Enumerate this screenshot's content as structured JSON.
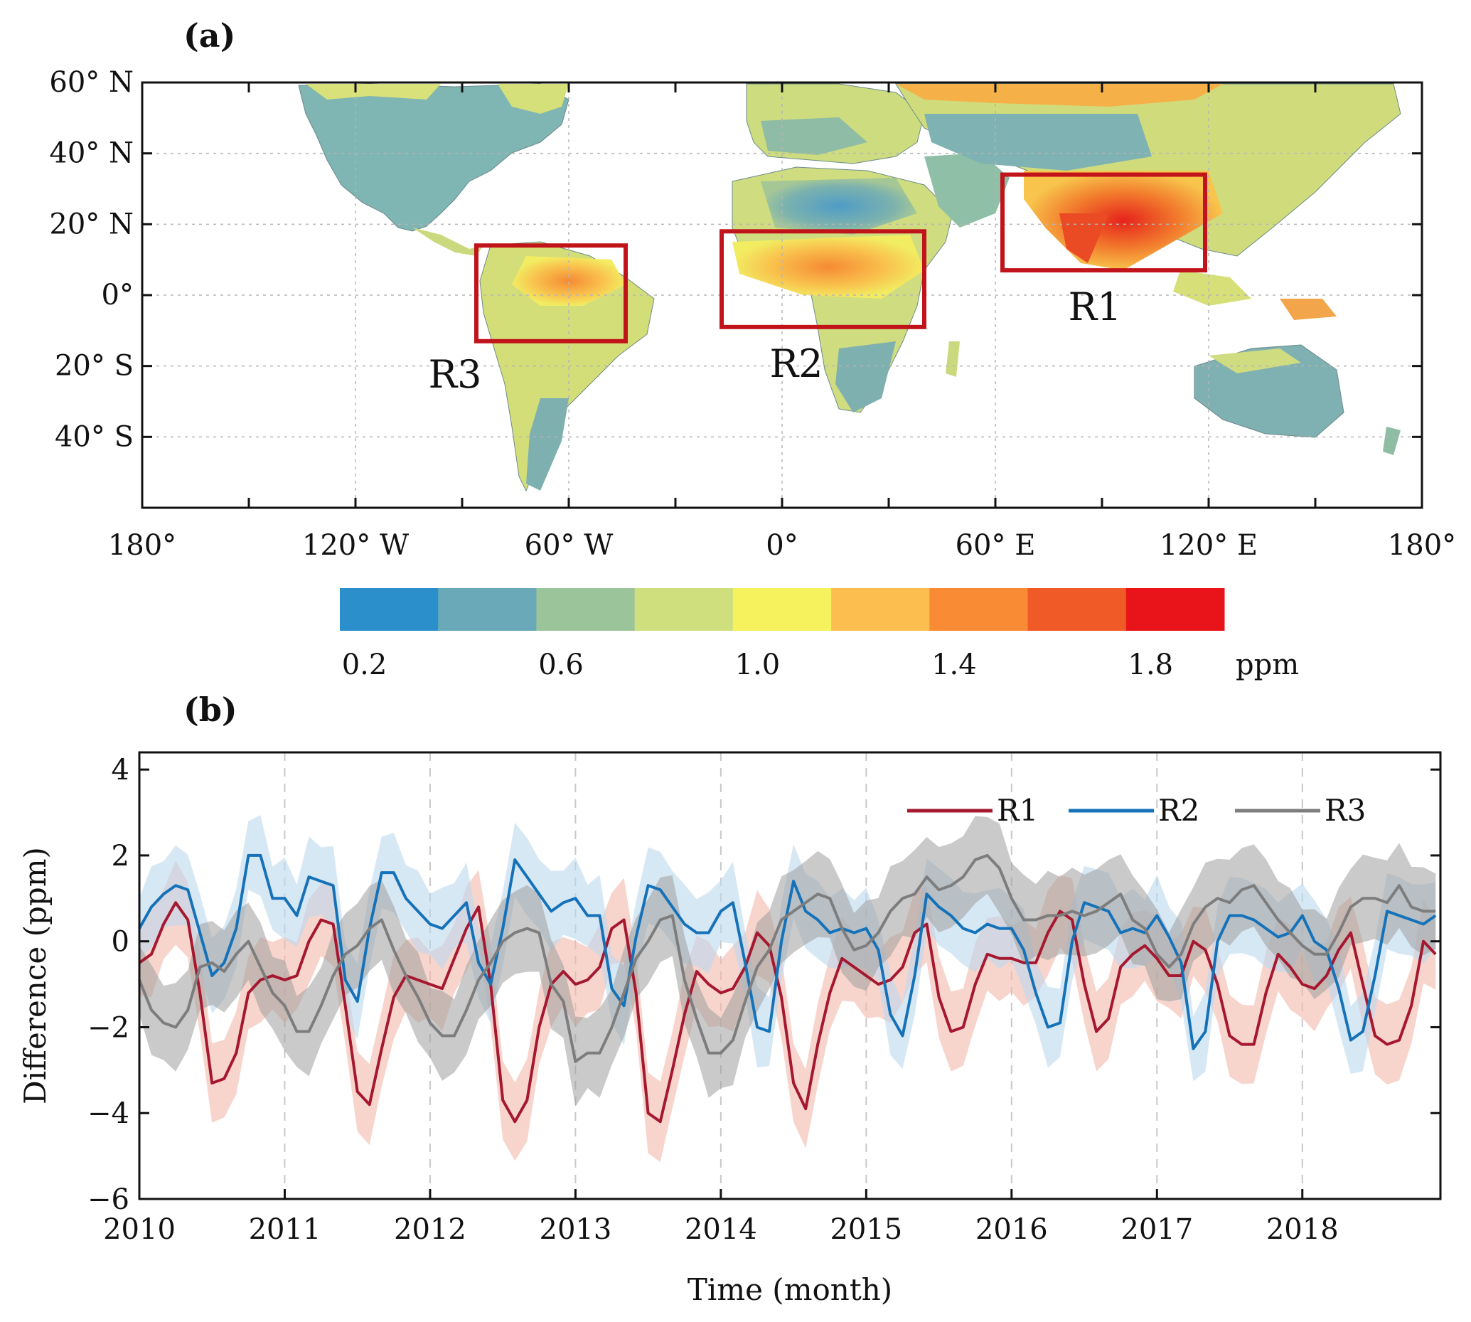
{
  "panels": {
    "a_label": "(a)",
    "b_label": "(b)"
  },
  "map": {
    "lat_ticks": [
      "60° N",
      "40° N",
      "20° N",
      "0°",
      "20° S",
      "40° S"
    ],
    "lat_values": [
      60,
      40,
      20,
      0,
      -20,
      -40
    ],
    "lon_ticks": [
      "180°",
      "120° W",
      "60° W",
      "0°",
      "60° E",
      "120° E",
      "180°"
    ],
    "lon_values": [
      -180,
      -120,
      -60,
      0,
      60,
      120,
      180
    ],
    "lat_range": [
      -60,
      60
    ],
    "lon_range": [
      -180,
      180
    ],
    "regions": [
      {
        "name": "R1",
        "lon": [
          62,
          119
        ],
        "lat": [
          7,
          34
        ],
        "color": "#c0141a"
      },
      {
        "name": "R2",
        "lon": [
          -17,
          40
        ],
        "lat": [
          -9,
          18
        ],
        "color": "#c0141a"
      },
      {
        "name": "R3",
        "lon": [
          -86,
          -44
        ],
        "lat": [
          -13,
          14
        ],
        "color": "#c0141a"
      }
    ]
  },
  "colorbar": {
    "colors": [
      "#2b8fcb",
      "#6aa9b7",
      "#9cc49b",
      "#cfdf7d",
      "#f5f25e",
      "#fcbf4f",
      "#f98b34",
      "#f05a26",
      "#e8141a"
    ],
    "tick_labels": [
      "0.2",
      "0.6",
      "1.0",
      "1.4",
      "1.8"
    ],
    "unit": "ppm"
  },
  "chart_data": {
    "type": "line",
    "xlabel": "Time (month)",
    "ylabel": "Difference (ppm)",
    "xlim": [
      2010,
      2018.95
    ],
    "ylim": [
      -6,
      4.4
    ],
    "x_ticks": [
      "2010",
      "2011",
      "2012",
      "2013",
      "2014",
      "2015",
      "2016",
      "2017",
      "2018"
    ],
    "y_ticks": [
      "4",
      "2",
      "0",
      "−2",
      "−4",
      "−6"
    ],
    "y_tick_values": [
      4,
      2,
      0,
      -2,
      -4,
      -6
    ],
    "grid": "vertical-dashed",
    "legend": "top-right",
    "series": [
      {
        "name": "R1",
        "color": "#a5182f",
        "band_color": "#f2b9ab",
        "values": [
          -0.5,
          -0.3,
          0.4,
          0.9,
          0.5,
          -1.2,
          -3.3,
          -3.2,
          -2.6,
          -1.2,
          -0.9,
          -0.8,
          -0.9,
          -0.8,
          0.0,
          0.5,
          0.4,
          -1.5,
          -3.5,
          -3.8,
          -2.5,
          -1.3,
          -0.8,
          -0.9,
          -1.0,
          -1.1,
          -0.4,
          0.3,
          0.8,
          -1.0,
          -3.7,
          -4.2,
          -3.7,
          -2.0,
          -1.0,
          -0.7,
          -1.0,
          -0.9,
          -0.6,
          0.3,
          0.5,
          -1.2,
          -4.0,
          -4.2,
          -3.0,
          -1.7,
          -0.7,
          -1.0,
          -1.2,
          -1.1,
          -0.6,
          0.2,
          -0.1,
          -1.3,
          -3.3,
          -3.9,
          -2.4,
          -1.2,
          -0.4,
          -0.6,
          -0.8,
          -1.0,
          -0.9,
          -0.6,
          0.2,
          0.4,
          -1.3,
          -2.1,
          -2.0,
          -1.0,
          -0.3,
          -0.4,
          -0.4,
          -0.5,
          -0.5,
          0.2,
          0.7,
          0.5,
          -1.0,
          -2.1,
          -1.8,
          -0.6,
          -0.3,
          -0.1,
          -0.4,
          -0.8,
          -0.8,
          0.0,
          -0.2,
          -1.0,
          -2.2,
          -2.4,
          -2.4,
          -1.2,
          -0.3,
          -0.6,
          -1.0,
          -1.1,
          -0.8,
          -0.2,
          0.2,
          -1.0,
          -2.2,
          -2.4,
          -2.3,
          -1.5,
          0.0,
          -0.3
        ]
      },
      {
        "name": "R2",
        "color": "#1672b8",
        "band_color": "#bcd9ee",
        "values": [
          0.3,
          0.8,
          1.1,
          1.3,
          1.2,
          0.2,
          -0.8,
          -0.5,
          0.3,
          2.0,
          2.0,
          1.0,
          1.0,
          0.6,
          1.5,
          1.4,
          1.3,
          -0.9,
          -1.4,
          0.3,
          1.6,
          1.6,
          1.0,
          0.7,
          0.4,
          0.3,
          0.6,
          0.9,
          -0.5,
          -1.0,
          0.3,
          1.9,
          1.5,
          1.1,
          0.7,
          0.9,
          1.0,
          0.6,
          0.6,
          -1.1,
          -1.5,
          0.1,
          1.3,
          1.2,
          0.8,
          0.4,
          0.2,
          0.2,
          0.7,
          0.9,
          -0.5,
          -2.0,
          -2.1,
          0.0,
          1.4,
          0.7,
          0.5,
          0.2,
          0.3,
          0.2,
          0.3,
          -0.2,
          -1.7,
          -2.2,
          -0.8,
          1.1,
          0.8,
          0.6,
          0.3,
          0.2,
          0.4,
          0.3,
          0.3,
          -0.2,
          -1.2,
          -2.0,
          -1.9,
          0.0,
          0.9,
          0.8,
          0.7,
          0.2,
          0.3,
          0.2,
          0.6,
          0.1,
          -0.5,
          -2.5,
          -2.1,
          0.0,
          0.6,
          0.6,
          0.5,
          0.3,
          0.1,
          0.2,
          0.6,
          0.0,
          -0.2,
          -1.1,
          -2.3,
          -2.1,
          -0.8,
          0.7,
          0.6,
          0.5,
          0.4,
          0.6
        ]
      },
      {
        "name": "R3",
        "color": "#7d7d7d",
        "band_color": "#9e9e9e",
        "values": [
          -0.9,
          -1.6,
          -1.9,
          -2.0,
          -1.6,
          -0.6,
          -0.5,
          -0.7,
          -0.3,
          0.0,
          -0.6,
          -1.2,
          -1.5,
          -2.1,
          -2.1,
          -1.5,
          -0.8,
          -0.3,
          -0.1,
          0.3,
          0.5,
          -0.2,
          -0.8,
          -1.3,
          -1.9,
          -2.2,
          -2.2,
          -1.6,
          -0.9,
          -0.5,
          0.0,
          0.2,
          0.3,
          0.2,
          -1.0,
          -1.4,
          -2.8,
          -2.6,
          -2.6,
          -2.0,
          -1.2,
          -0.4,
          0.0,
          0.5,
          0.6,
          -0.9,
          -1.8,
          -2.6,
          -2.6,
          -2.3,
          -1.4,
          -0.6,
          -0.2,
          0.5,
          0.7,
          0.9,
          1.1,
          1.0,
          0.3,
          -0.2,
          -0.1,
          0.2,
          0.7,
          1.0,
          1.1,
          1.5,
          1.2,
          1.3,
          1.5,
          1.9,
          2.0,
          1.7,
          1.0,
          0.5,
          0.5,
          0.6,
          0.6,
          0.7,
          0.6,
          0.7,
          0.9,
          1.1,
          0.5,
          0.3,
          -0.3,
          -0.6,
          -0.3,
          0.4,
          0.8,
          1.0,
          0.9,
          1.2,
          1.3,
          0.9,
          0.5,
          0.2,
          -0.1,
          -0.3,
          -0.3,
          0.2,
          0.8,
          1.0,
          1.0,
          0.9,
          1.3,
          0.8,
          0.7,
          0.7
        ]
      }
    ]
  }
}
